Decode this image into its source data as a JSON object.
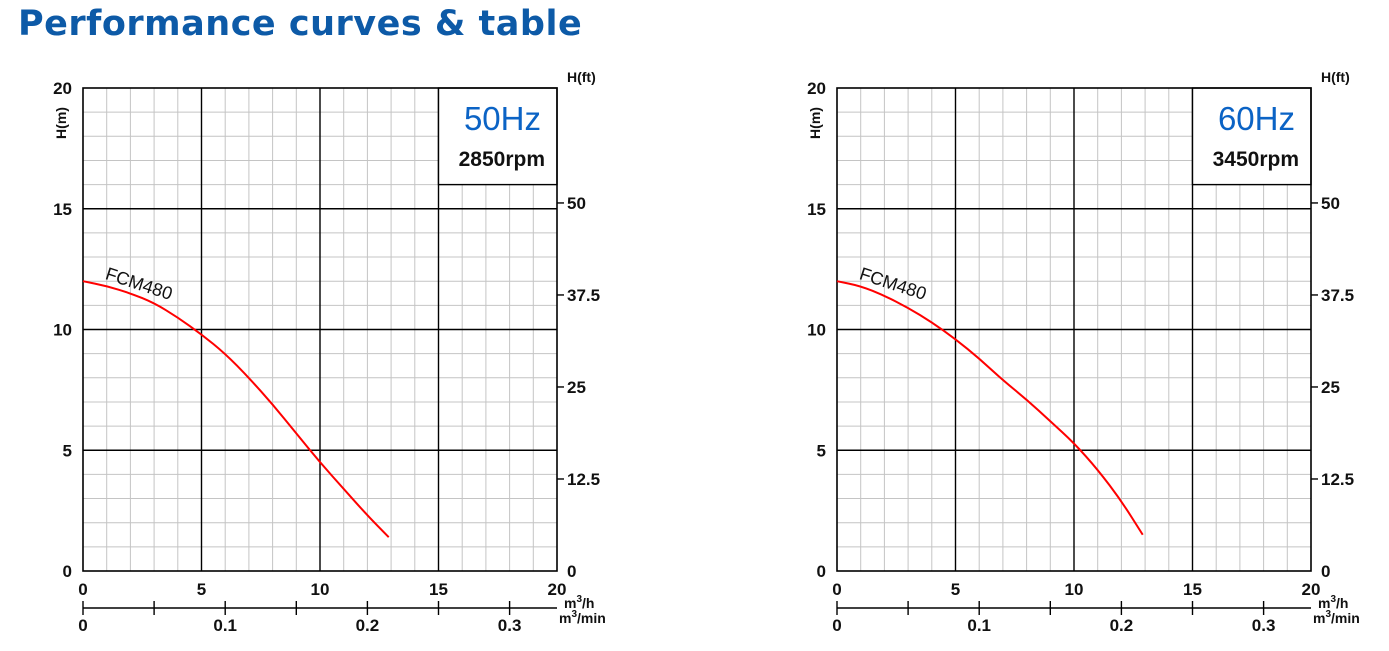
{
  "page": {
    "title": "Performance curves & table"
  },
  "chart_data": [
    {
      "type": "line",
      "frequency": "50Hz",
      "speed": "2850rpm",
      "frequency_color": "#0b63c5",
      "curve_color": "#ff0000",
      "xlim": [
        0,
        20
      ],
      "ylim": [
        0,
        20
      ],
      "xlabel": "m³/h",
      "ylabel": "H(m)",
      "y2label": "H(ft)",
      "x2label": "m³/min",
      "x_ticks": [
        "0",
        "5",
        "10",
        "15",
        "20"
      ],
      "y_ticks": [
        "0",
        "5",
        "10",
        "15",
        "20"
      ],
      "y2_ticks": [
        "0",
        "12.5",
        "25",
        "37.5",
        "50"
      ],
      "x2_ticks": [
        "0",
        "0.1",
        "0.2",
        "0.3"
      ],
      "grid": true,
      "series": [
        {
          "name": "FCM480",
          "x": [
            0,
            1,
            2,
            3,
            4,
            5,
            6,
            7,
            8,
            9,
            10,
            11,
            12,
            12.9
          ],
          "y": [
            12.0,
            11.8,
            11.5,
            11.1,
            10.5,
            9.8,
            9.0,
            8.0,
            6.9,
            5.7,
            4.5,
            3.4,
            2.3,
            1.4
          ]
        }
      ]
    },
    {
      "type": "line",
      "frequency": "60Hz",
      "speed": "3450rpm",
      "frequency_color": "#0b63c5",
      "curve_color": "#ff0000",
      "xlim": [
        0,
        20
      ],
      "ylim": [
        0,
        20
      ],
      "xlabel": "m³/h",
      "ylabel": "H(m)",
      "y2label": "H(ft)",
      "x2label": "m³/min",
      "x_ticks": [
        "0",
        "5",
        "10",
        "15",
        "20"
      ],
      "y_ticks": [
        "0",
        "5",
        "10",
        "15",
        "20"
      ],
      "y2_ticks": [
        "0",
        "12.5",
        "25",
        "37.5",
        "50"
      ],
      "x2_ticks": [
        "0",
        "0.1",
        "0.2",
        "0.3"
      ],
      "grid": true,
      "series": [
        {
          "name": "FCM480",
          "x": [
            0,
            1,
            2,
            3,
            4,
            5,
            6,
            7,
            8,
            9,
            10,
            11,
            12,
            12.9
          ],
          "y": [
            12.0,
            11.8,
            11.4,
            10.9,
            10.3,
            9.6,
            8.8,
            7.9,
            7.1,
            6.2,
            5.3,
            4.2,
            2.9,
            1.5
          ]
        }
      ]
    }
  ]
}
